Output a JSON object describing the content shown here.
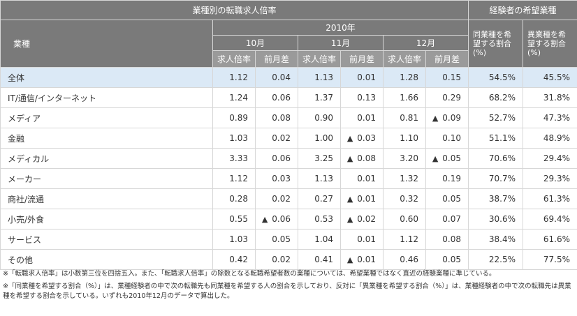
{
  "header": {
    "main_title": "業種別の転職求人倍率",
    "right_title": "経験者の希望業種",
    "industry_label": "業種",
    "year": "2010年",
    "months": [
      "10月",
      "11月",
      "12月"
    ],
    "col_ratio": "求人倍率",
    "col_diff": "前月差",
    "same_industry": "同業種を希望する割合(%)",
    "other_industry": "異業種を希望する割合(%)"
  },
  "rows": [
    {
      "name": "全体",
      "oct_ratio": "1.12",
      "oct_diff": "0.04",
      "oct_down": false,
      "nov_ratio": "1.13",
      "nov_diff": "0.01",
      "nov_down": false,
      "dec_ratio": "1.28",
      "dec_diff": "0.15",
      "dec_down": false,
      "same": "54.5%",
      "other": "45.5%"
    },
    {
      "name": "IT/通信/インターネット",
      "oct_ratio": "1.24",
      "oct_diff": "0.06",
      "oct_down": false,
      "nov_ratio": "1.37",
      "nov_diff": "0.13",
      "nov_down": false,
      "dec_ratio": "1.66",
      "dec_diff": "0.29",
      "dec_down": false,
      "same": "68.2%",
      "other": "31.8%"
    },
    {
      "name": "メディア",
      "oct_ratio": "0.89",
      "oct_diff": "0.08",
      "oct_down": false,
      "nov_ratio": "0.90",
      "nov_diff": "0.01",
      "nov_down": false,
      "dec_ratio": "0.81",
      "dec_diff": "0.09",
      "dec_down": true,
      "same": "52.7%",
      "other": "47.3%"
    },
    {
      "name": "金融",
      "oct_ratio": "1.03",
      "oct_diff": "0.02",
      "oct_down": false,
      "nov_ratio": "1.00",
      "nov_diff": "0.03",
      "nov_down": true,
      "dec_ratio": "1.10",
      "dec_diff": "0.10",
      "dec_down": false,
      "same": "51.1%",
      "other": "48.9%"
    },
    {
      "name": "メディカル",
      "oct_ratio": "3.33",
      "oct_diff": "0.06",
      "oct_down": false,
      "nov_ratio": "3.25",
      "nov_diff": "0.08",
      "nov_down": true,
      "dec_ratio": "3.20",
      "dec_diff": "0.05",
      "dec_down": true,
      "same": "70.6%",
      "other": "29.4%"
    },
    {
      "name": "メーカー",
      "oct_ratio": "1.12",
      "oct_diff": "0.03",
      "oct_down": false,
      "nov_ratio": "1.13",
      "nov_diff": "0.01",
      "nov_down": false,
      "dec_ratio": "1.32",
      "dec_diff": "0.19",
      "dec_down": false,
      "same": "70.7%",
      "other": "29.3%"
    },
    {
      "name": "商社/流通",
      "oct_ratio": "0.28",
      "oct_diff": "0.02",
      "oct_down": false,
      "nov_ratio": "0.27",
      "nov_diff": "0.01",
      "nov_down": true,
      "dec_ratio": "0.32",
      "dec_diff": "0.05",
      "dec_down": false,
      "same": "38.7%",
      "other": "61.3%"
    },
    {
      "name": "小売/外食",
      "oct_ratio": "0.55",
      "oct_diff": "0.06",
      "oct_down": true,
      "nov_ratio": "0.53",
      "nov_diff": "0.02",
      "nov_down": true,
      "dec_ratio": "0.60",
      "dec_diff": "0.07",
      "dec_down": false,
      "same": "30.6%",
      "other": "69.4%"
    },
    {
      "name": "サービス",
      "oct_ratio": "1.03",
      "oct_diff": "0.05",
      "oct_down": false,
      "nov_ratio": "1.04",
      "nov_diff": "0.01",
      "nov_down": false,
      "dec_ratio": "1.12",
      "dec_diff": "0.08",
      "dec_down": false,
      "same": "38.4%",
      "other": "61.6%"
    },
    {
      "name": "その他",
      "oct_ratio": "0.42",
      "oct_diff": "0.02",
      "oct_down": false,
      "nov_ratio": "0.41",
      "nov_diff": "0.01",
      "nov_down": true,
      "dec_ratio": "0.46",
      "dec_diff": "0.05",
      "dec_down": false,
      "same": "22.5%",
      "other": "77.5%"
    }
  ],
  "down_marker": "▲",
  "notes": [
    "※「転職求人倍率」は小数第三位を四捨五入。また、「転職求人倍率」の除数となる転職希望者数の業種については、希望業種ではなく直近の経験業種に準じている。",
    "※「同業種を希望する割合（%）」は、業種経験者の中で次の転職先も同業種を希望する人の割合を示しており、反対に「異業種を希望する割合（%）」は、業種経験者の中で次の転職先は異業種を希望する割合を示している。いずれも2010年12月のデータで算出した。"
  ],
  "colors": {
    "header_dark": "#7a7a7a",
    "header_mid": "#9a9a9a",
    "total_row_bg": "#dbe9f6",
    "border": "#d7d7d7"
  }
}
